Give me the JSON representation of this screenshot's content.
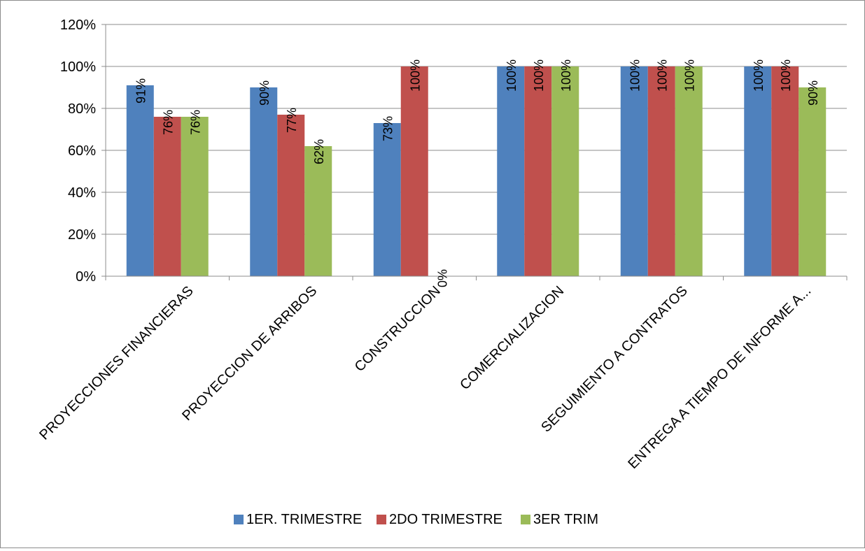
{
  "chart_data": {
    "type": "bar",
    "title": "",
    "xlabel": "",
    "ylabel": "",
    "ylim": [
      0,
      1.2
    ],
    "yticks": [
      0,
      0.2,
      0.4,
      0.6,
      0.8,
      1.0,
      1.2
    ],
    "ytick_labels": [
      "0%",
      "20%",
      "40%",
      "60%",
      "80%",
      "100%",
      "120%"
    ],
    "grid": true,
    "legend_position": "bottom",
    "categories": [
      "PROYECCIONES FINANCIERAS",
      "PROYECCION DE ARRIBOS",
      "CONSTRUCCION",
      "COMERCIALIZACION",
      "SEGUIMIENTO A CONTRATOS",
      "ENTREGA A TIEMPO DE INFORME A..."
    ],
    "series": [
      {
        "name": "1ER. TRIMESTRE",
        "color": "#4f81bd",
        "values": [
          0.91,
          0.9,
          0.73,
          1.0,
          1.0,
          1.0
        ],
        "labels": [
          "91%",
          "90%",
          "73%",
          "100%",
          "100%",
          "100%"
        ]
      },
      {
        "name": "2DO TRIMESTRE",
        "color": "#c0504d",
        "values": [
          0.76,
          0.77,
          1.0,
          1.0,
          1.0,
          1.0
        ],
        "labels": [
          "76%",
          "77%",
          "100%",
          "100%",
          "100%",
          "100%"
        ]
      },
      {
        "name": "3ER TRIM",
        "color": "#9bbb59",
        "values": [
          0.76,
          0.62,
          0.0,
          1.0,
          1.0,
          0.9
        ],
        "labels": [
          "76%",
          "62%",
          "0%",
          "100%",
          "100%",
          "90%"
        ]
      }
    ]
  }
}
